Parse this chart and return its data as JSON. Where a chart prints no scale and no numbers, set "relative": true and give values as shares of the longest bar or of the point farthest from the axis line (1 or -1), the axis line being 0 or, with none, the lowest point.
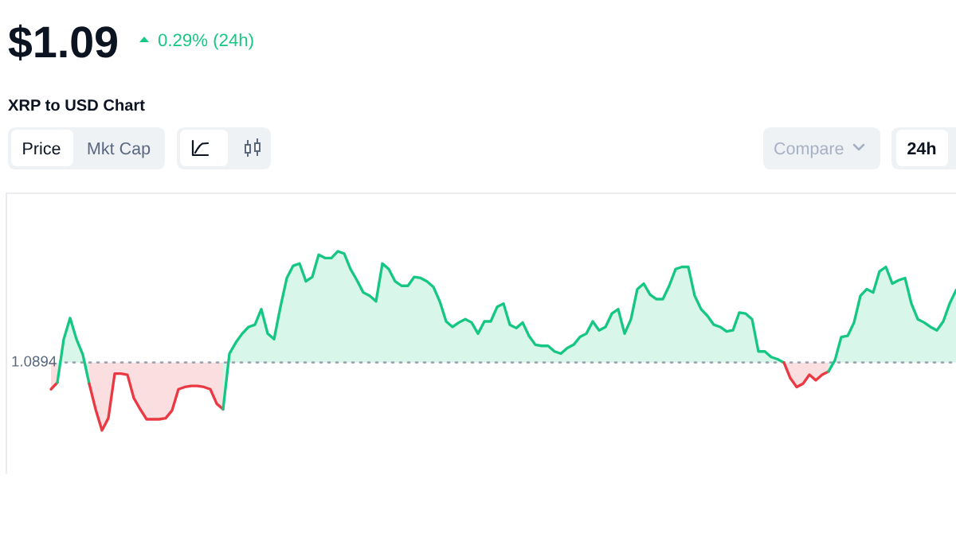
{
  "chart_data": {
    "type": "area",
    "title": "XRP to USD Chart",
    "relative": true,
    "annotations": [
      "$1.09",
      "0.29% (24h)",
      "Price",
      "Mkt Cap",
      "Compare",
      "24h",
      "1.0894"
    ],
    "ref_lines": [
      {
        "axis": "y",
        "value": 0,
        "color": "#9aa3b0",
        "line_style": "dotted"
      }
    ],
    "categories": [
      null,
      null,
      null,
      null,
      null,
      null,
      null,
      null,
      null,
      null,
      null,
      null,
      null,
      null,
      null,
      null,
      null,
      null,
      null,
      null,
      null,
      null,
      null,
      null,
      null,
      null,
      null,
      null,
      null,
      null,
      null,
      null,
      null,
      null,
      null,
      null,
      null,
      null,
      null,
      null,
      null,
      null,
      null,
      null,
      null,
      null,
      null,
      null,
      null,
      null,
      null,
      null,
      null,
      null,
      null,
      null,
      null,
      null,
      null,
      null,
      null,
      null,
      null,
      null,
      null,
      null,
      null,
      null,
      null,
      null,
      null,
      null,
      null,
      null,
      null,
      null,
      null,
      null,
      null,
      null,
      null,
      null,
      null,
      null,
      null,
      null,
      null,
      null,
      null,
      null,
      null,
      null,
      null,
      null,
      null,
      null,
      null,
      null,
      null,
      null,
      null,
      null,
      null,
      null,
      null,
      null,
      null,
      null,
      null,
      null,
      null,
      null,
      null,
      null,
      null,
      null,
      null,
      null,
      null,
      null,
      null,
      null,
      null,
      null,
      null,
      null,
      null,
      null,
      null,
      null,
      null,
      null,
      null,
      null,
      null,
      null,
      null,
      null,
      null,
      null,
      null,
      null,
      null,
      null,
      null,
      null,
      null,
      null,
      null,
      null
    ],
    "series": [
      {
        "color": "#ea3943",
        "values": [
          null,
          null,
          null,
          null,
          null,
          null,
          null,
          -0.24,
          -0.18,
          null,
          null,
          null,
          null,
          null,
          null,
          null,
          null,
          null,
          null,
          null,
          null,
          null,
          null,
          null,
          null,
          null,
          null,
          null,
          null,
          null,
          null,
          null,
          null,
          null,
          null,
          null,
          null,
          null,
          null,
          null,
          null,
          null,
          null,
          null,
          null,
          null,
          null,
          null,
          null,
          null,
          null,
          null,
          null,
          null,
          null,
          null,
          null,
          null,
          null,
          null,
          null,
          null,
          null,
          null,
          null,
          null,
          null,
          null,
          null,
          null,
          null,
          null,
          null,
          null,
          null,
          null,
          null,
          null,
          null,
          null,
          null,
          null,
          null,
          null,
          null,
          null,
          null,
          null,
          null,
          null,
          null,
          null,
          null,
          null,
          null,
          null,
          null,
          null,
          null,
          null,
          null,
          null,
          null,
          null,
          null,
          null,
          null,
          null,
          null,
          null,
          null,
          null,
          null,
          null,
          null,
          null,
          null,
          null,
          null,
          null,
          null,
          null,
          null,
          null,
          null,
          null,
          null,
          null,
          null,
          null,
          null,
          null,
          null,
          null,
          null,
          null,
          null,
          null,
          null,
          null,
          null,
          null,
          null,
          null,
          null,
          null,
          null,
          null,
          null,
          null
        ]
      },
      {
        "color": "#16c784",
        "values": [
          null,
          null,
          null,
          null,
          null,
          null,
          null,
          null,
          -0.18,
          0.21,
          0.4,
          0.21,
          0.07,
          -0.19,
          null,
          null,
          null,
          null,
          null,
          null,
          null,
          null,
          null,
          null,
          null,
          null,
          null,
          null,
          null,
          null,
          null,
          null,
          null,
          null,
          null,
          null,
          null,
          null,
          null,
          null,
          null,
          null,
          null,
          null,
          null,
          null,
          null,
          null,
          null,
          null,
          null,
          null,
          null,
          null,
          null,
          null,
          null,
          null,
          null,
          null,
          null,
          null,
          null,
          null,
          null,
          null,
          null,
          null,
          null,
          null,
          null,
          null,
          null,
          null,
          null,
          null,
          null,
          null,
          null,
          null,
          null,
          null,
          null,
          null,
          null,
          null,
          null,
          null,
          null,
          null,
          null,
          null,
          null,
          null,
          null,
          null,
          null,
          null,
          null,
          null,
          null,
          null,
          null,
          null,
          null,
          null,
          null,
          null,
          null,
          null,
          null,
          null,
          null,
          null,
          null,
          null,
          null,
          null,
          null,
          null,
          null,
          null,
          null,
          null,
          null,
          null,
          null,
          null,
          null,
          null,
          null,
          null,
          null,
          null,
          null,
          null,
          null,
          null,
          null,
          null,
          null,
          null,
          null,
          null,
          null,
          null,
          null,
          null,
          null,
          null
        ]
      },
      {
        "color": "#ea3943",
        "values": [
          null,
          null,
          null,
          null,
          null,
          null,
          null,
          null,
          null,
          null,
          null,
          null,
          null,
          -0.19,
          -0.42,
          -0.61,
          -0.5,
          -0.1,
          -0.1,
          -0.11,
          -0.32,
          -0.42,
          -0.51,
          -0.51,
          -0.51,
          -0.5,
          -0.43,
          -0.24,
          -0.22,
          -0.21,
          -0.21,
          -0.22,
          -0.24,
          -0.37,
          -0.42,
          null,
          null,
          null,
          null,
          null,
          null,
          null,
          null,
          null,
          null,
          null,
          null,
          null,
          null,
          null,
          null,
          null,
          null,
          null,
          null,
          null,
          null,
          null,
          null,
          null,
          null,
          null,
          null,
          null,
          null,
          null,
          null,
          null,
          null,
          null,
          null,
          null,
          null,
          null,
          null,
          null,
          null,
          null,
          null,
          null,
          null,
          null,
          null,
          null,
          null,
          null,
          null,
          null,
          null,
          null,
          null,
          null,
          null,
          null,
          null,
          null,
          null,
          null,
          null,
          null,
          null,
          null,
          null,
          null,
          null,
          null,
          null,
          null,
          null,
          null,
          null,
          null,
          null,
          null,
          null,
          null,
          null,
          null,
          null,
          null,
          null,
          null,
          null,
          null,
          null,
          null,
          null,
          null,
          null,
          null,
          null,
          null,
          null,
          null,
          null,
          null,
          null,
          null,
          null,
          null,
          null,
          null,
          null,
          null,
          null,
          null,
          null,
          null,
          null,
          null
        ]
      },
      {
        "color": "#16c784",
        "values": [
          null,
          null,
          null,
          null,
          null,
          null,
          null,
          null,
          null,
          null,
          null,
          null,
          null,
          null,
          null,
          null,
          null,
          null,
          null,
          null,
          null,
          null,
          null,
          null,
          null,
          null,
          null,
          null,
          null,
          null,
          null,
          null,
          null,
          null,
          -0.42,
          0.08,
          0.18,
          0.26,
          0.32,
          0.34,
          0.48,
          0.26,
          0.21,
          0.5,
          0.76,
          0.87,
          0.89,
          0.73,
          0.77,
          0.97,
          0.94,
          0.94,
          1,
          0.98,
          0.84,
          0.74,
          0.63,
          0.6,
          0.55,
          0.89,
          0.84,
          0.73,
          0.69,
          0.69,
          0.77,
          0.76,
          0.73,
          0.68,
          0.55,
          0.37,
          0.32,
          0.36,
          0.39,
          0.36,
          0.26,
          0.37,
          0.37,
          0.5,
          0.53,
          0.34,
          0.31,
          0.36,
          0.24,
          0.16,
          0.15,
          0.15,
          0.1,
          0.08,
          0.13,
          0.16,
          0.23,
          0.26,
          0.37,
          0.29,
          0.32,
          0.44,
          0.48,
          0.26,
          0.39,
          0.66,
          0.71,
          0.61,
          0.57,
          0.57,
          0.69,
          0.84,
          0.86,
          0.86,
          0.6,
          0.48,
          0.42,
          0.34,
          0.32,
          0.28,
          0.29,
          0.45,
          0.44,
          0.39,
          0.1,
          0.1,
          0.05,
          0.03,
          0.0,
          null,
          null,
          null,
          null,
          null,
          null,
          null,
          null,
          null,
          null,
          null,
          null,
          null,
          null,
          null,
          null,
          null,
          null,
          null,
          null,
          null,
          null,
          null,
          null,
          null,
          null,
          null
        ]
      },
      {
        "color": "#ea3943",
        "values": [
          null,
          null,
          null,
          null,
          null,
          null,
          null,
          null,
          null,
          null,
          null,
          null,
          null,
          null,
          null,
          null,
          null,
          null,
          null,
          null,
          null,
          null,
          null,
          null,
          null,
          null,
          null,
          null,
          null,
          null,
          null,
          null,
          null,
          null,
          null,
          null,
          null,
          null,
          null,
          null,
          null,
          null,
          null,
          null,
          null,
          null,
          null,
          null,
          null,
          null,
          null,
          null,
          null,
          null,
          null,
          null,
          null,
          null,
          null,
          null,
          null,
          null,
          null,
          null,
          null,
          null,
          null,
          null,
          null,
          null,
          null,
          null,
          null,
          null,
          null,
          null,
          null,
          null,
          null,
          null,
          null,
          null,
          null,
          null,
          null,
          null,
          null,
          null,
          null,
          null,
          null,
          null,
          null,
          null,
          null,
          null,
          null,
          null,
          null,
          null,
          null,
          null,
          null,
          null,
          null,
          null,
          null,
          null,
          null,
          null,
          null,
          null,
          null,
          null,
          null,
          null,
          null,
          null,
          null,
          null,
          null,
          null,
          0.0,
          -0.14,
          -0.22,
          -0.19,
          -0.11,
          -0.16,
          -0.11,
          -0.08,
          null,
          null,
          null,
          null,
          null,
          null,
          null,
          null,
          null,
          null,
          null,
          null,
          null,
          null,
          null,
          null,
          null,
          null,
          null,
          null
        ]
      },
      {
        "color": "#16c784",
        "values": [
          null,
          null,
          null,
          null,
          null,
          null,
          null,
          null,
          null,
          null,
          null,
          null,
          null,
          null,
          null,
          null,
          null,
          null,
          null,
          null,
          null,
          null,
          null,
          null,
          null,
          null,
          null,
          null,
          null,
          null,
          null,
          null,
          null,
          null,
          null,
          null,
          null,
          null,
          null,
          null,
          null,
          null,
          null,
          null,
          null,
          null,
          null,
          null,
          null,
          null,
          null,
          null,
          null,
          null,
          null,
          null,
          null,
          null,
          null,
          null,
          null,
          null,
          null,
          null,
          null,
          null,
          null,
          null,
          null,
          null,
          null,
          null,
          null,
          null,
          null,
          null,
          null,
          null,
          null,
          null,
          null,
          null,
          null,
          null,
          null,
          null,
          null,
          null,
          null,
          null,
          null,
          null,
          null,
          null,
          null,
          null,
          null,
          null,
          null,
          null,
          null,
          null,
          null,
          null,
          null,
          null,
          null,
          null,
          null,
          null,
          null,
          null,
          null,
          null,
          null,
          null,
          null,
          null,
          null,
          null,
          null,
          null,
          null,
          null,
          null,
          null,
          null,
          null,
          null,
          -0.08,
          0.02,
          0.23,
          0.24,
          0.36,
          0.6,
          0.66,
          0.63,
          0.82,
          0.86,
          0.71,
          0.74,
          0.76,
          0.53,
          0.39,
          0.36,
          0.32,
          0.29,
          0.37,
          0.53,
          0.65
        ]
      }
    ]
  }
}
